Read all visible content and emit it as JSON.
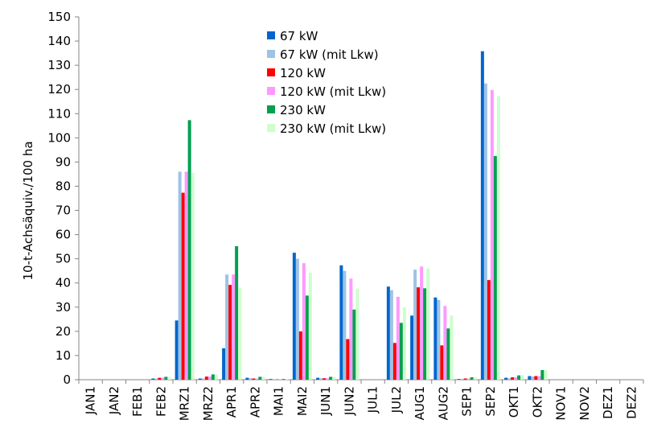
{
  "chart_data": {
    "type": "bar",
    "title": "",
    "xlabel": "",
    "ylabel": "10-t-Achsäquiv./100 ha",
    "ylim": [
      0,
      150
    ],
    "yticks": [
      0,
      10,
      20,
      30,
      40,
      50,
      60,
      70,
      80,
      90,
      100,
      110,
      120,
      130,
      140,
      150
    ],
    "grid": false,
    "legend_position": "top-center",
    "categories": [
      "JAN1",
      "JAN2",
      "FEB1",
      "FEB2",
      "MRZ1",
      "MRZ2",
      "APR1",
      "APR2",
      "MAI1",
      "MAI2",
      "JUN1",
      "JUN2",
      "JUL1",
      "JUL2",
      "AUG1",
      "AUG2",
      "SEP1",
      "SEP2",
      "OKT1",
      "OKT2",
      "NOV1",
      "NOV2",
      "DEZ1",
      "DEZ2"
    ],
    "series": [
      {
        "name": "67 kW",
        "color": "#0066CC",
        "values": [
          0,
          0,
          0,
          0.5,
          24.5,
          0.5,
          13,
          0.8,
          0.3,
          52.5,
          0.8,
          47.3,
          0,
          38.5,
          26.5,
          34,
          0.3,
          135.8,
          0.8,
          1.5,
          0,
          0,
          0,
          0
        ]
      },
      {
        "name": "67 kW (mit Lkw)",
        "color": "#9DC3E6",
        "values": [
          0,
          0,
          0,
          0.5,
          86,
          0.5,
          43.5,
          0.6,
          0.2,
          50,
          0.6,
          45,
          0,
          37,
          45.5,
          33,
          0.3,
          122.5,
          0.6,
          1.3,
          0,
          0,
          0,
          0
        ]
      },
      {
        "name": "120 kW",
        "color": "#FF0000",
        "values": [
          0,
          0,
          0,
          0.8,
          77.3,
          1.3,
          39.2,
          0.5,
          0.1,
          20,
          0.6,
          16.8,
          0,
          15.2,
          38.2,
          14.2,
          0.5,
          41.2,
          1,
          1.5,
          0,
          0,
          0,
          0
        ]
      },
      {
        "name": "120 kW (mit Lkw)",
        "color": "#FF99FF",
        "values": [
          0,
          0,
          0,
          0.8,
          86,
          1.3,
          43.5,
          0.5,
          0.1,
          48.2,
          0.6,
          41.8,
          0,
          34.3,
          46.8,
          30.5,
          0.5,
          119.8,
          1,
          1.5,
          0,
          0,
          0,
          0
        ]
      },
      {
        "name": "230 kW",
        "color": "#00A050",
        "values": [
          0,
          0,
          0,
          1.2,
          107.3,
          2.2,
          55.2,
          1.2,
          0.3,
          34.8,
          1.2,
          29,
          0,
          23.5,
          37.8,
          21.2,
          1,
          92.5,
          1.8,
          4,
          0,
          0,
          0,
          0
        ]
      },
      {
        "name": "230 kW (mit Lkw)",
        "color": "#CCFFCC",
        "values": [
          0,
          0,
          0,
          1.2,
          85.5,
          2.2,
          38,
          1.2,
          0.3,
          44.2,
          1.2,
          37.7,
          0,
          30,
          46,
          26.5,
          1,
          117.2,
          1.8,
          4,
          0,
          0,
          0,
          0
        ]
      }
    ]
  }
}
